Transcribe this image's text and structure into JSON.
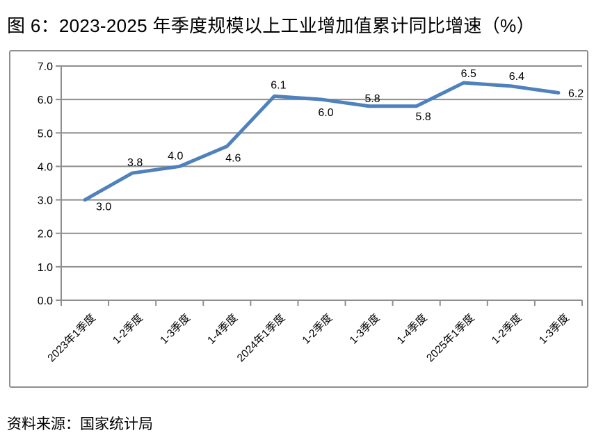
{
  "chart_data": {
    "type": "line",
    "title": "图 6：2023-2025 年季度规模以上工业增加值累计同比增速（%）",
    "categories": [
      "2023年1季度",
      "1-2季度",
      "1-3季度",
      "1-4季度",
      "2024年1季度",
      "1-2季度",
      "1-3季度",
      "1-4季度",
      "2025年1季度",
      "1-2季度",
      "1-3季度"
    ],
    "values": [
      3.0,
      3.8,
      4.0,
      4.6,
      6.1,
      6.0,
      5.8,
      5.8,
      6.5,
      6.4,
      6.2
    ],
    "data_labels": [
      "3.0",
      "3.8",
      "4.0",
      "4.6",
      "6.1",
      "6.0",
      "5.8",
      "5.8",
      "6.5",
      "6.4",
      "6.2"
    ],
    "ylim": [
      0,
      7
    ],
    "ytick_step": 1,
    "ytick_labels": [
      "0.0",
      "1.0",
      "2.0",
      "3.0",
      "4.0",
      "5.0",
      "6.0",
      "7.0"
    ],
    "xlabel": "",
    "ylabel": "",
    "grid": "horizontal",
    "legend": "none",
    "line_color": "#4F81BD",
    "grid_color": "#8f8f8f",
    "axis_color": "#8f8f8f",
    "text_color": "#000000"
  },
  "source": "资料来源：国家统计局"
}
